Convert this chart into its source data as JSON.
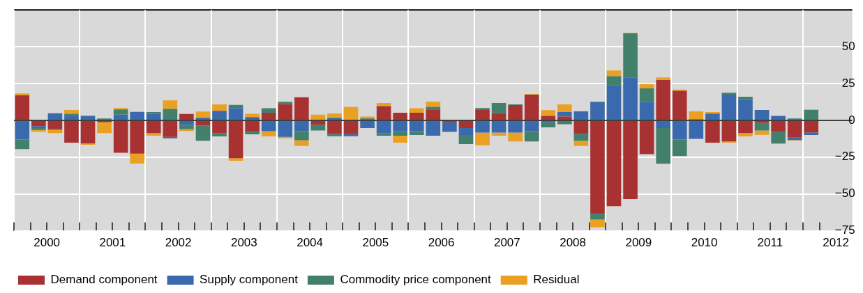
{
  "chart_data": {
    "type": "bar",
    "stacked": true,
    "grid": true,
    "legend": "bottom",
    "x": [
      2000.125,
      2000.375,
      2000.625,
      2000.875,
      2001.125,
      2001.375,
      2001.625,
      2001.875,
      2002.125,
      2002.375,
      2002.625,
      2002.875,
      2003.125,
      2003.375,
      2003.625,
      2003.875,
      2004.125,
      2004.375,
      2004.625,
      2004.875,
      2005.125,
      2005.375,
      2005.625,
      2005.875,
      2006.125,
      2006.375,
      2006.625,
      2006.875,
      2007.125,
      2007.375,
      2007.625,
      2007.875,
      2008.125,
      2008.375,
      2008.625,
      2008.875,
      2009.125,
      2009.375,
      2009.625,
      2009.875,
      2010.125,
      2010.375,
      2010.625,
      2010.875,
      2011.125,
      2011.375,
      2011.625,
      2011.875,
      2012.125
    ],
    "xlim": [
      2000,
      2012.75
    ],
    "xticks": [
      {
        "value": 2000,
        "label": null
      },
      {
        "value": 2000.25,
        "label": null
      },
      {
        "value": 2000.5,
        "label": "2000"
      },
      {
        "value": 2000.75,
        "label": null
      },
      {
        "value": 2001,
        "label": null
      },
      {
        "value": 2001.25,
        "label": null
      },
      {
        "value": 2001.5,
        "label": "2001"
      },
      {
        "value": 2001.75,
        "label": null
      },
      {
        "value": 2002,
        "label": null
      },
      {
        "value": 2002.25,
        "label": null
      },
      {
        "value": 2002.5,
        "label": "2002"
      },
      {
        "value": 2002.75,
        "label": null
      },
      {
        "value": 2003,
        "label": null
      },
      {
        "value": 2003.25,
        "label": null
      },
      {
        "value": 2003.5,
        "label": "2003"
      },
      {
        "value": 2003.75,
        "label": null
      },
      {
        "value": 2004,
        "label": null
      },
      {
        "value": 2004.25,
        "label": null
      },
      {
        "value": 2004.5,
        "label": "2004"
      },
      {
        "value": 2004.75,
        "label": null
      },
      {
        "value": 2005,
        "label": null
      },
      {
        "value": 2005.25,
        "label": null
      },
      {
        "value": 2005.5,
        "label": "2005"
      },
      {
        "value": 2005.75,
        "label": null
      },
      {
        "value": 2006,
        "label": null
      },
      {
        "value": 2006.25,
        "label": null
      },
      {
        "value": 2006.5,
        "label": "2006"
      },
      {
        "value": 2006.75,
        "label": null
      },
      {
        "value": 2007,
        "label": null
      },
      {
        "value": 2007.25,
        "label": null
      },
      {
        "value": 2007.5,
        "label": "2007"
      },
      {
        "value": 2007.75,
        "label": null
      },
      {
        "value": 2008,
        "label": null
      },
      {
        "value": 2008.25,
        "label": null
      },
      {
        "value": 2008.5,
        "label": "2008"
      },
      {
        "value": 2008.75,
        "label": null
      },
      {
        "value": 2009,
        "label": null
      },
      {
        "value": 2009.25,
        "label": null
      },
      {
        "value": 2009.5,
        "label": "2009"
      },
      {
        "value": 2009.75,
        "label": null
      },
      {
        "value": 2010,
        "label": null
      },
      {
        "value": 2010.25,
        "label": null
      },
      {
        "value": 2010.5,
        "label": "2010"
      },
      {
        "value": 2010.75,
        "label": null
      },
      {
        "value": 2011,
        "label": null
      },
      {
        "value": 2011.25,
        "label": null
      },
      {
        "value": 2011.5,
        "label": "2011"
      },
      {
        "value": 2011.75,
        "label": null
      },
      {
        "value": 2012,
        "label": null
      },
      {
        "value": 2012.25,
        "label": null
      },
      {
        "value": 2012.5,
        "label": "2012"
      }
    ],
    "ylim": [
      -75,
      75
    ],
    "yticks": [
      {
        "value": -75,
        "label": "−75"
      },
      {
        "value": -50,
        "label": "−50"
      },
      {
        "value": -25,
        "label": "−25"
      },
      0,
      25,
      50
    ],
    "series": [
      {
        "name": "Demand component",
        "color": "#a83232",
        "values": [
          17,
          -3.9,
          -5.8,
          -15.2,
          -15.7,
          -1.2,
          -22,
          -22.6,
          -8.7,
          -11.3,
          4.3,
          -3.5,
          -8.7,
          -25.7,
          -7.8,
          5.2,
          10.9,
          15.7,
          -3,
          -9.1,
          -9.4,
          0,
          9.6,
          5.2,
          5.2,
          7,
          -1.3,
          -5.2,
          7,
          4.8,
          10.4,
          17.4,
          3,
          2.6,
          -9.1,
          -63.5,
          -58.3,
          -53.5,
          -23,
          27.4,
          20,
          0.5,
          -15.2,
          -14.3,
          -8.7,
          -1.7,
          -7.8,
          -11.7,
          -8.3
        ]
      },
      {
        "name": "Supply component",
        "color": "#3a6aad",
        "values": [
          -13,
          -1.3,
          4.8,
          2.8,
          2.9,
          null,
          3.9,
          5.7,
          4.3,
          -0.9,
          -3,
          1.7,
          6.5,
          8.3,
          2.2,
          -7.4,
          -11.3,
          -7.4,
          0,
          1.7,
          -1.4,
          -5.2,
          -8.7,
          -7.4,
          -7.4,
          -10.4,
          -6.5,
          -4.8,
          -8.3,
          -8.3,
          -8.3,
          -7.4,
          -1.3,
          3,
          6.1,
          12.6,
          23.9,
          29.1,
          12.6,
          -5.2,
          -13,
          -12.6,
          4.3,
          17.4,
          14.3,
          7,
          3,
          -1.7,
          -1.7
        ]
      },
      {
        "name": "Commodity price component",
        "color": "#43806b",
        "values": [
          -6.6,
          -1.3,
          -0.7,
          1.6,
          0.3,
          1.3,
          3.5,
          0,
          1.3,
          7.8,
          -3,
          -10.4,
          -2.2,
          2.2,
          -1.7,
          3,
          1.7,
          -6.1,
          -3.9,
          -1.7,
          0,
          1.3,
          -1.7,
          -3,
          -2.6,
          2.2,
          0,
          -6.1,
          1.3,
          7,
          0.4,
          -7,
          -3.5,
          -2.6,
          -4.8,
          -3.9,
          6.1,
          30,
          9.1,
          -24.3,
          -11.3,
          0.4,
          0.4,
          1.3,
          1.7,
          -5.2,
          -7.8,
          1.3,
          7
        ]
      },
      {
        "name": "Residual",
        "color": "#e9a023",
        "values": [
          1.3,
          -1.3,
          -2.2,
          2.6,
          -0.9,
          -7.5,
          0.9,
          -6.8,
          -1.7,
          5.7,
          -1.3,
          4.3,
          4.3,
          -1.7,
          2.2,
          -3.5,
          -0.9,
          -3.9,
          3.9,
          3,
          9.1,
          1.3,
          2.2,
          -4.8,
          3,
          3.5,
          0,
          0,
          -8.7,
          -2.2,
          -6.1,
          0.4,
          3.9,
          5.2,
          -3.5,
          -5.2,
          3.9,
          0.4,
          3,
          1.7,
          0.9,
          5.2,
          0.9,
          -0.9,
          -2.2,
          -3,
          -0.4,
          -0.4,
          0.4
        ]
      }
    ]
  }
}
